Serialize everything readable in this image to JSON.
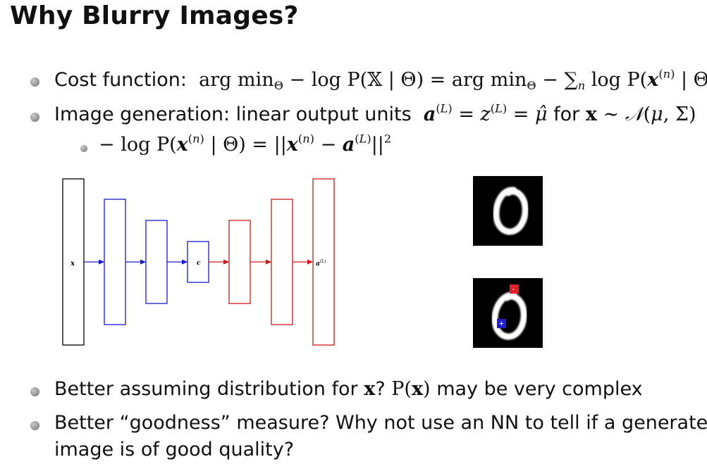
{
  "slide": {
    "title": "Why Blurry Images?",
    "bullet1_label": "Cost function:",
    "bullet2_label": "Image generation: linear output units",
    "bullet2_for": "for",
    "bullet4_pre": "Better assuming distribution for",
    "bullet4_post": "may be very complex",
    "bullet5_line1": "Better “goodness” measure? Why not use an NN to tell if a generated",
    "bullet5_line2": "image is of good quality?"
  },
  "diagram": {
    "input_label": "x",
    "code_label": "c",
    "output_label": "a(L)",
    "colors": {
      "encoder": "#1a1acc",
      "decoder": "#cc1a1a",
      "input": "#000000"
    }
  },
  "images": {
    "digit": "0",
    "marker_top_color": "#e0202a",
    "marker_bottom_color": "#2020d0"
  }
}
